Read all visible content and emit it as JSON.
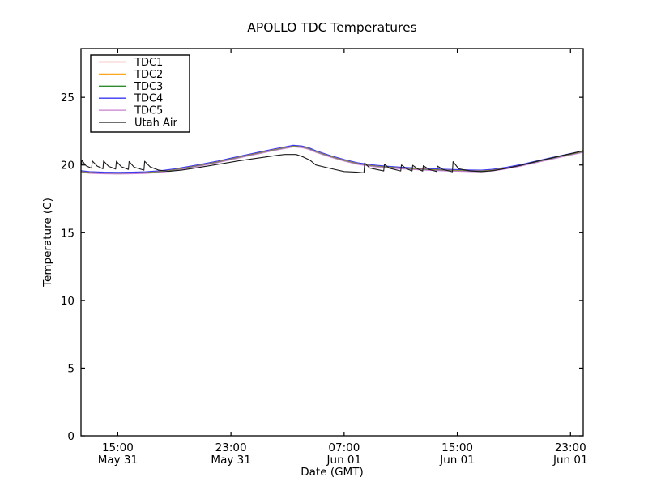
{
  "window": {
    "background": "#ffffff"
  },
  "chart_data": {
    "type": "line",
    "title": "APOLLO TDC Temperatures",
    "xlabel": "Date (GMT)",
    "ylabel": "Temperature (C)",
    "x_unit": "hours since May 31 00:00 GMT",
    "xlim": [
      12.4,
      47.9
    ],
    "ylim": [
      0,
      28.6
    ],
    "grid": false,
    "legend_position": "upper-left",
    "axis_color": "#000000",
    "y_ticks": [
      0,
      5,
      10,
      15,
      20,
      25
    ],
    "x_ticks": [
      {
        "value": 15,
        "time": "15:00",
        "date": "May 31"
      },
      {
        "value": 23,
        "time": "23:00",
        "date": "May 31"
      },
      {
        "value": 31,
        "time": "07:00",
        "date": "Jun 01"
      },
      {
        "value": 39,
        "time": "15:00",
        "date": "Jun 01"
      },
      {
        "value": 47,
        "time": "23:00",
        "date": "Jun 01"
      }
    ],
    "series": [
      {
        "name": "TDC1",
        "color": "#e03232",
        "y_offset": 0.0,
        "points": [
          [
            12.43,
            19.52
          ],
          [
            13,
            19.45
          ],
          [
            14,
            19.41
          ],
          [
            15,
            19.4
          ],
          [
            16,
            19.41
          ],
          [
            17,
            19.44
          ],
          [
            18,
            19.52
          ],
          [
            19,
            19.65
          ],
          [
            20,
            19.83
          ],
          [
            21,
            20.02
          ],
          [
            22,
            20.22
          ],
          [
            23,
            20.45
          ],
          [
            24,
            20.68
          ],
          [
            25,
            20.9
          ],
          [
            26,
            21.12
          ],
          [
            27,
            21.32
          ],
          [
            27.4,
            21.4
          ],
          [
            28,
            21.35
          ],
          [
            28.5,
            21.22
          ],
          [
            29,
            21.0
          ],
          [
            30,
            20.65
          ],
          [
            31,
            20.35
          ],
          [
            32,
            20.1
          ],
          [
            33,
            19.95
          ],
          [
            34,
            19.85
          ],
          [
            35,
            19.78
          ],
          [
            36,
            19.72
          ],
          [
            37,
            19.67
          ],
          [
            38,
            19.63
          ],
          [
            39,
            19.6
          ],
          [
            40,
            19.57
          ],
          [
            40.7,
            19.56
          ],
          [
            41.5,
            19.62
          ],
          [
            42.5,
            19.78
          ],
          [
            43.5,
            19.98
          ],
          [
            44.5,
            20.22
          ],
          [
            45.5,
            20.45
          ],
          [
            46.5,
            20.68
          ],
          [
            47.4,
            20.88
          ],
          [
            47.9,
            21.0
          ]
        ]
      },
      {
        "name": "TDC2",
        "color": "#ffa51f",
        "y_offset": 0.03,
        "same_points_as": "TDC1"
      },
      {
        "name": "TDC3",
        "color": "#2e8b2e",
        "y_offset": -0.03,
        "same_points_as": "TDC1"
      },
      {
        "name": "TDC4",
        "color": "#3a3af0",
        "y_offset": 0.06,
        "same_points_as": "TDC1"
      },
      {
        "name": "TDC5",
        "color": "#c77fd2",
        "y_offset": -0.06,
        "same_points_as": "TDC1"
      },
      {
        "name": "Utah Air",
        "color": "#1a1a1a",
        "y_offset": 0.0,
        "points": [
          [
            12.43,
            20.0
          ],
          [
            12.47,
            20.35
          ],
          [
            12.75,
            19.95
          ],
          [
            13.15,
            19.76
          ],
          [
            13.2,
            20.3
          ],
          [
            13.55,
            19.92
          ],
          [
            13.95,
            19.72
          ],
          [
            14.0,
            20.3
          ],
          [
            14.35,
            19.9
          ],
          [
            14.85,
            19.7
          ],
          [
            14.9,
            20.28
          ],
          [
            15.25,
            19.87
          ],
          [
            15.75,
            19.67
          ],
          [
            15.8,
            20.26
          ],
          [
            16.15,
            19.84
          ],
          [
            16.85,
            19.62
          ],
          [
            16.9,
            20.28
          ],
          [
            17.3,
            19.85
          ],
          [
            17.9,
            19.62
          ],
          [
            18.6,
            19.53
          ],
          [
            19.5,
            19.62
          ],
          [
            20.5,
            19.78
          ],
          [
            21.5,
            19.95
          ],
          [
            22.5,
            20.12
          ],
          [
            23.5,
            20.3
          ],
          [
            24.5,
            20.45
          ],
          [
            25.5,
            20.6
          ],
          [
            26.3,
            20.72
          ],
          [
            26.8,
            20.78
          ],
          [
            27.6,
            20.78
          ],
          [
            28.1,
            20.6
          ],
          [
            28.6,
            20.35
          ],
          [
            29,
            20.0
          ],
          [
            30,
            19.75
          ],
          [
            31,
            19.52
          ],
          [
            31.9,
            19.47
          ],
          [
            32.4,
            19.42
          ],
          [
            32.45,
            20.15
          ],
          [
            32.8,
            19.78
          ],
          [
            33.8,
            19.56
          ],
          [
            33.85,
            20.06
          ],
          [
            34.2,
            19.76
          ],
          [
            35.0,
            19.56
          ],
          [
            35.05,
            20.0
          ],
          [
            35.4,
            19.73
          ],
          [
            35.8,
            19.56
          ],
          [
            35.85,
            19.98
          ],
          [
            36.2,
            19.71
          ],
          [
            36.55,
            19.55
          ],
          [
            36.6,
            19.95
          ],
          [
            37.0,
            19.68
          ],
          [
            37.55,
            19.52
          ],
          [
            37.6,
            19.92
          ],
          [
            38.0,
            19.66
          ],
          [
            38.65,
            19.5
          ],
          [
            38.7,
            20.25
          ],
          [
            39.1,
            19.72
          ],
          [
            39.9,
            19.56
          ],
          [
            40.7,
            19.51
          ],
          [
            41.5,
            19.58
          ],
          [
            42.5,
            19.76
          ],
          [
            43.5,
            19.98
          ],
          [
            44.5,
            20.24
          ],
          [
            45.5,
            20.48
          ],
          [
            46.5,
            20.72
          ],
          [
            47.4,
            20.93
          ],
          [
            47.9,
            21.06
          ]
        ]
      }
    ]
  }
}
